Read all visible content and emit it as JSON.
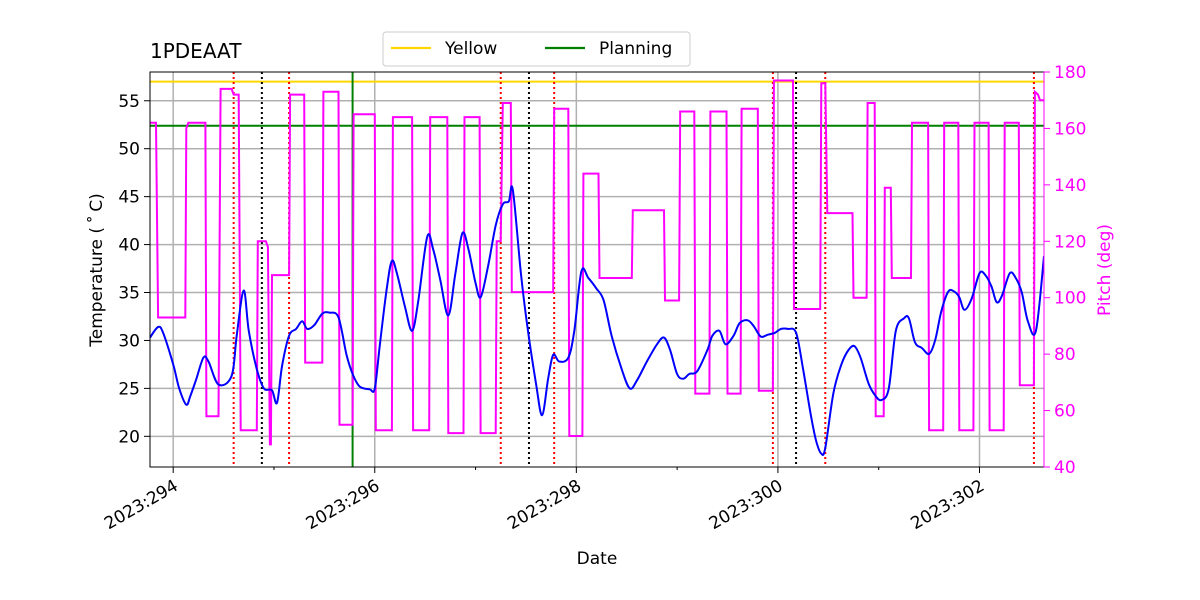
{
  "chart_data": {
    "type": "line",
    "title": "1PDEAAT",
    "xlabel": "Date",
    "ylabel": "Temperature ($^\\circ$C)",
    "ylabel_display": "Temperature ( ˚ C)",
    "y2label": "Pitch (deg)",
    "xlim": [
      293.77,
      302.64
    ],
    "ylim": [
      16.8,
      58.0
    ],
    "y2lim": [
      40,
      180
    ],
    "x_ticks": [
      {
        "value": 294,
        "label": "2023:294"
      },
      {
        "value": 296,
        "label": "2023:296"
      },
      {
        "value": 298,
        "label": "2023:298"
      },
      {
        "value": 300,
        "label": "2023:300"
      },
      {
        "value": 302,
        "label": "2023:302"
      }
    ],
    "x_minor_ticks": [
      295,
      297,
      299,
      301
    ],
    "y_ticks": [
      20,
      25,
      30,
      35,
      40,
      45,
      50,
      55
    ],
    "y2_ticks": [
      40,
      60,
      80,
      100,
      120,
      140,
      160,
      180
    ],
    "colors": {
      "temperature": "#0000ff",
      "pitch": "#ff00ff",
      "yellow": "#ffd700",
      "planning": "#008000",
      "red_markers": "#ff0000",
      "black_markers": "#000000",
      "grid": "#b0b0b0"
    },
    "legend": {
      "placement": "top-center",
      "entries": [
        {
          "label": "Yellow",
          "color": "#ffd700"
        },
        {
          "label": "Planning",
          "color": "#008000"
        }
      ]
    },
    "limits": {
      "yellow": 57.0,
      "planning": 52.4
    },
    "planning_vertical_x": 295.78,
    "red_vertical_x": [
      294.6,
      295.15,
      297.25,
      297.78,
      299.95,
      300.47,
      302.54
    ],
    "black_vertical_x": [
      294.88,
      297.53,
      300.18
    ],
    "temperature_series": [
      [
        293.77,
        30.3
      ],
      [
        293.85,
        31.4
      ],
      [
        293.9,
        30.8
      ],
      [
        294.0,
        27.5
      ],
      [
        294.06,
        25.0
      ],
      [
        294.13,
        23.3
      ],
      [
        294.17,
        24.2
      ],
      [
        294.23,
        26.0
      ],
      [
        294.3,
        28.2
      ],
      [
        294.35,
        27.8
      ],
      [
        294.45,
        25.4
      ],
      [
        294.58,
        26.3
      ],
      [
        294.63,
        30.5
      ],
      [
        294.7,
        35.2
      ],
      [
        294.75,
        31.0
      ],
      [
        294.83,
        27.0
      ],
      [
        294.9,
        25.0
      ],
      [
        294.98,
        24.8
      ],
      [
        295.03,
        23.5
      ],
      [
        295.08,
        27.3
      ],
      [
        295.15,
        30.5
      ],
      [
        295.22,
        31.2
      ],
      [
        295.28,
        32.0
      ],
      [
        295.33,
        31.2
      ],
      [
        295.4,
        31.6
      ],
      [
        295.48,
        32.8
      ],
      [
        295.55,
        32.9
      ],
      [
        295.64,
        32.4
      ],
      [
        295.72,
        28.5
      ],
      [
        295.78,
        26.5
      ],
      [
        295.85,
        25.2
      ],
      [
        295.95,
        24.9
      ],
      [
        296.0,
        25.0
      ],
      [
        296.05,
        29.5
      ],
      [
        296.12,
        35.5
      ],
      [
        296.17,
        38.3
      ],
      [
        296.22,
        37.0
      ],
      [
        296.3,
        33.5
      ],
      [
        296.37,
        31.0
      ],
      [
        296.43,
        34.0
      ],
      [
        296.52,
        40.8
      ],
      [
        296.58,
        39.5
      ],
      [
        296.65,
        36.3
      ],
      [
        296.73,
        32.6
      ],
      [
        296.8,
        37.0
      ],
      [
        296.87,
        41.2
      ],
      [
        296.93,
        39.5
      ],
      [
        297.0,
        36.0
      ],
      [
        297.05,
        34.5
      ],
      [
        297.12,
        37.5
      ],
      [
        297.2,
        42.0
      ],
      [
        297.27,
        44.2
      ],
      [
        297.33,
        44.5
      ],
      [
        297.37,
        45.7
      ],
      [
        297.45,
        37.0
      ],
      [
        297.52,
        31.0
      ],
      [
        297.6,
        25.5
      ],
      [
        297.66,
        22.2
      ],
      [
        297.72,
        26.0
      ],
      [
        297.77,
        28.5
      ],
      [
        297.83,
        27.8
      ],
      [
        297.92,
        28.2
      ],
      [
        297.98,
        31.0
      ],
      [
        298.05,
        37.2
      ],
      [
        298.12,
        36.5
      ],
      [
        298.2,
        35.4
      ],
      [
        298.27,
        34.2
      ],
      [
        298.35,
        30.5
      ],
      [
        298.45,
        27.0
      ],
      [
        298.53,
        25.0
      ],
      [
        298.6,
        25.8
      ],
      [
        298.7,
        27.8
      ],
      [
        298.8,
        29.6
      ],
      [
        298.87,
        30.3
      ],
      [
        298.93,
        29.0
      ],
      [
        299.0,
        26.5
      ],
      [
        299.06,
        26.0
      ],
      [
        299.12,
        26.5
      ],
      [
        299.2,
        26.8
      ],
      [
        299.3,
        29.0
      ],
      [
        299.35,
        30.5
      ],
      [
        299.42,
        31.0
      ],
      [
        299.48,
        29.6
      ],
      [
        299.56,
        30.5
      ],
      [
        299.62,
        31.8
      ],
      [
        299.7,
        32.1
      ],
      [
        299.76,
        31.5
      ],
      [
        299.83,
        30.4
      ],
      [
        299.9,
        30.6
      ],
      [
        299.97,
        30.8
      ],
      [
        300.03,
        31.2
      ],
      [
        300.1,
        31.2
      ],
      [
        300.18,
        30.8
      ],
      [
        300.25,
        27.0
      ],
      [
        300.33,
        22.0
      ],
      [
        300.38,
        19.5
      ],
      [
        300.43,
        18.2
      ],
      [
        300.47,
        18.8
      ],
      [
        300.55,
        24.5
      ],
      [
        300.63,
        27.5
      ],
      [
        300.7,
        29.0
      ],
      [
        300.76,
        29.4
      ],
      [
        300.82,
        28.2
      ],
      [
        300.9,
        25.5
      ],
      [
        300.97,
        24.2
      ],
      [
        301.03,
        23.8
      ],
      [
        301.1,
        25.0
      ],
      [
        301.17,
        31.0
      ],
      [
        301.25,
        32.3
      ],
      [
        301.3,
        32.3
      ],
      [
        301.36,
        29.8
      ],
      [
        301.43,
        29.2
      ],
      [
        301.5,
        28.6
      ],
      [
        301.56,
        30.0
      ],
      [
        301.62,
        33.0
      ],
      [
        301.69,
        35.1
      ],
      [
        301.75,
        35.1
      ],
      [
        301.8,
        34.5
      ],
      [
        301.85,
        33.2
      ],
      [
        301.92,
        34.3
      ],
      [
        302.0,
        37.0
      ],
      [
        302.06,
        36.8
      ],
      [
        302.12,
        35.6
      ],
      [
        302.17,
        34.0
      ],
      [
        302.22,
        34.6
      ],
      [
        302.3,
        37.0
      ],
      [
        302.36,
        36.5
      ],
      [
        302.42,
        35.0
      ],
      [
        302.48,
        32.0
      ],
      [
        302.56,
        31.0
      ],
      [
        302.64,
        38.8
      ]
    ],
    "pitch_series": [
      [
        293.77,
        162
      ],
      [
        293.8,
        162
      ],
      [
        293.83,
        162
      ],
      [
        293.85,
        93
      ],
      [
        294.1,
        93
      ],
      [
        294.12,
        93
      ],
      [
        294.13,
        160
      ],
      [
        294.15,
        162
      ],
      [
        294.3,
        162
      ],
      [
        294.32,
        162
      ],
      [
        294.33,
        58
      ],
      [
        294.43,
        58
      ],
      [
        294.45,
        58
      ],
      [
        294.47,
        174
      ],
      [
        294.58,
        174
      ],
      [
        294.6,
        172
      ],
      [
        294.65,
        172
      ],
      [
        294.67,
        53
      ],
      [
        294.8,
        53
      ],
      [
        294.83,
        53
      ],
      [
        294.84,
        120
      ],
      [
        294.92,
        120
      ],
      [
        294.94,
        118
      ],
      [
        294.96,
        48
      ],
      [
        294.97,
        48
      ],
      [
        294.98,
        108
      ],
      [
        295.13,
        108
      ],
      [
        295.15,
        108
      ],
      [
        295.16,
        172
      ],
      [
        295.28,
        172
      ],
      [
        295.3,
        172
      ],
      [
        295.31,
        77
      ],
      [
        295.45,
        77
      ],
      [
        295.48,
        77
      ],
      [
        295.49,
        173
      ],
      [
        295.62,
        173
      ],
      [
        295.64,
        173
      ],
      [
        295.65,
        55
      ],
      [
        295.76,
        55
      ],
      [
        295.78,
        55
      ],
      [
        295.79,
        165
      ],
      [
        295.98,
        165
      ],
      [
        296.0,
        165
      ],
      [
        296.01,
        53
      ],
      [
        296.15,
        53
      ],
      [
        296.17,
        53
      ],
      [
        296.18,
        164
      ],
      [
        296.35,
        164
      ],
      [
        296.37,
        164
      ],
      [
        296.38,
        53
      ],
      [
        296.52,
        53
      ],
      [
        296.54,
        53
      ],
      [
        296.55,
        164
      ],
      [
        296.7,
        164
      ],
      [
        296.72,
        164
      ],
      [
        296.73,
        52
      ],
      [
        296.86,
        52
      ],
      [
        296.88,
        52
      ],
      [
        296.89,
        164
      ],
      [
        297.02,
        164
      ],
      [
        297.04,
        164
      ],
      [
        297.05,
        52
      ],
      [
        297.18,
        52
      ],
      [
        297.2,
        52
      ],
      [
        297.21,
        120
      ],
      [
        297.25,
        120
      ],
      [
        297.27,
        169
      ],
      [
        297.33,
        169
      ],
      [
        297.35,
        169
      ],
      [
        297.36,
        102
      ],
      [
        297.75,
        102
      ],
      [
        297.77,
        102
      ],
      [
        297.78,
        167
      ],
      [
        297.9,
        167
      ],
      [
        297.92,
        167
      ],
      [
        297.93,
        51
      ],
      [
        298.04,
        51
      ],
      [
        298.06,
        51
      ],
      [
        298.07,
        144
      ],
      [
        298.2,
        144
      ],
      [
        298.22,
        144
      ],
      [
        298.23,
        107
      ],
      [
        298.53,
        107
      ],
      [
        298.55,
        107
      ],
      [
        298.56,
        131
      ],
      [
        298.85,
        131
      ],
      [
        298.87,
        131
      ],
      [
        298.88,
        99
      ],
      [
        299.0,
        99
      ],
      [
        299.02,
        99
      ],
      [
        299.03,
        166
      ],
      [
        299.15,
        166
      ],
      [
        299.17,
        166
      ],
      [
        299.18,
        66
      ],
      [
        299.3,
        66
      ],
      [
        299.32,
        66
      ],
      [
        299.33,
        166
      ],
      [
        299.47,
        166
      ],
      [
        299.49,
        166
      ],
      [
        299.5,
        66
      ],
      [
        299.61,
        66
      ],
      [
        299.63,
        66
      ],
      [
        299.64,
        167
      ],
      [
        299.78,
        167
      ],
      [
        299.8,
        167
      ],
      [
        299.81,
        67
      ],
      [
        299.93,
        67
      ],
      [
        299.95,
        67
      ],
      [
        299.96,
        177
      ],
      [
        300.13,
        177
      ],
      [
        300.15,
        177
      ],
      [
        300.16,
        96
      ],
      [
        300.4,
        96
      ],
      [
        300.42,
        96
      ],
      [
        300.43,
        176
      ],
      [
        300.47,
        176
      ],
      [
        300.49,
        130
      ],
      [
        300.72,
        130
      ],
      [
        300.74,
        130
      ],
      [
        300.75,
        100
      ],
      [
        300.86,
        100
      ],
      [
        300.88,
        100
      ],
      [
        300.89,
        169
      ],
      [
        300.94,
        169
      ],
      [
        300.96,
        169
      ],
      [
        300.97,
        58
      ],
      [
        301.03,
        58
      ],
      [
        301.05,
        58
      ],
      [
        301.06,
        139
      ],
      [
        301.1,
        139
      ],
      [
        301.12,
        139
      ],
      [
        301.13,
        107
      ],
      [
        301.3,
        107
      ],
      [
        301.32,
        107
      ],
      [
        301.33,
        162
      ],
      [
        301.47,
        162
      ],
      [
        301.49,
        162
      ],
      [
        301.5,
        53
      ],
      [
        301.62,
        53
      ],
      [
        301.64,
        53
      ],
      [
        301.65,
        162
      ],
      [
        301.77,
        162
      ],
      [
        301.79,
        162
      ],
      [
        301.8,
        53
      ],
      [
        301.92,
        53
      ],
      [
        301.94,
        53
      ],
      [
        301.95,
        162
      ],
      [
        302.07,
        162
      ],
      [
        302.09,
        162
      ],
      [
        302.1,
        53
      ],
      [
        302.22,
        53
      ],
      [
        302.24,
        53
      ],
      [
        302.25,
        162
      ],
      [
        302.37,
        162
      ],
      [
        302.39,
        162
      ],
      [
        302.4,
        69
      ],
      [
        302.52,
        69
      ],
      [
        302.54,
        69
      ],
      [
        302.55,
        173
      ],
      [
        302.58,
        172
      ],
      [
        302.6,
        170
      ],
      [
        302.64,
        170
      ]
    ]
  }
}
